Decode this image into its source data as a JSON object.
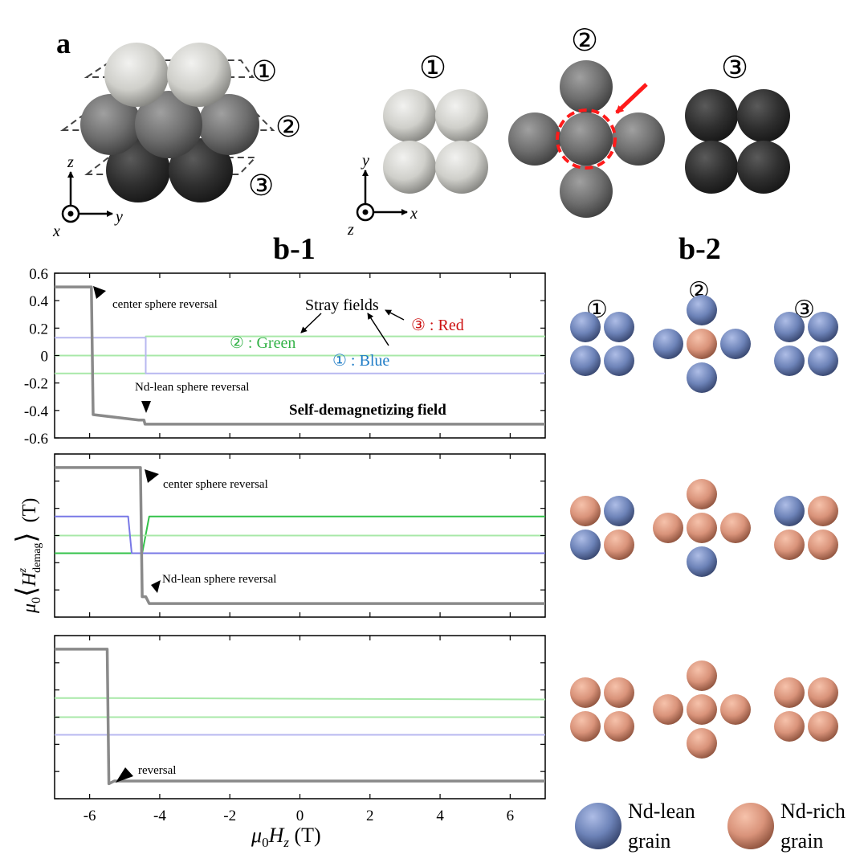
{
  "panel_a": {
    "label": "a",
    "layers": [
      "①",
      "②",
      "③"
    ],
    "axes_side": {
      "up": "z",
      "right": "y",
      "out": "x"
    },
    "axes_top": {
      "up": "y",
      "right": "x",
      "out": "z"
    }
  },
  "panel_b1": {
    "label": "b-1"
  },
  "panel_b2": {
    "label": "b-2",
    "layer_labels": [
      "①",
      "②",
      "③"
    ]
  },
  "annotations": {
    "top": {
      "center_reversal": "center sphere reversal",
      "ndlean_reversal": "Nd-lean sphere reversal",
      "stray_fields": "Stray fields",
      "green_label": "② : Green",
      "blue_label": "① : Blue",
      "red_label": "③ : Red",
      "self_demag": "Self-demagnetizing field"
    },
    "middle": {
      "center_reversal": "center sphere reversal",
      "ndlean_reversal": "Nd-lean sphere reversal"
    },
    "bottom": {
      "reversal": "reversal"
    }
  },
  "legend": {
    "nd_lean": [
      "Nd-lean",
      "grain"
    ],
    "nd_rich": [
      "Nd-rich",
      "grain"
    ]
  },
  "colors": {
    "nd_lean": "#6d83b8",
    "nd_rich": "#d9937a",
    "gray_curve": "#8a8a8a",
    "green": "#33c24a",
    "light_green": "#a8e8a8",
    "blue": "#7878e6",
    "light_blue": "#b8b8f0",
    "red": "#cc0000"
  },
  "chart_data": [
    {
      "type": "line",
      "xlabel": "",
      "ylabel": "",
      "xlim": [
        -7,
        7
      ],
      "ylim": [
        -0.6,
        0.6
      ],
      "yticks": [
        0.6,
        0.4,
        0.2,
        0,
        -0.2,
        -0.4,
        -0.6
      ],
      "ytick_labels": [
        "0.6",
        "0.4",
        "0.2",
        "0",
        "-0.2",
        "-0.4",
        "-0.6"
      ],
      "series": [
        {
          "color": "gray",
          "x": [
            -7,
            -6,
            -5.95,
            -5.9,
            -4.6,
            -4.45,
            -4.42,
            -4.4,
            7
          ],
          "y": [
            0.5,
            0.5,
            0.5,
            -0.43,
            -0.47,
            -0.47,
            -0.5,
            -0.5,
            -0.5
          ]
        },
        {
          "color": "light_green",
          "x": [
            -7,
            -4.4,
            -4.4,
            7
          ],
          "y": [
            -0.13,
            -0.13,
            0.14,
            0.14
          ]
        },
        {
          "color": "light_green",
          "x": [
            -7,
            7
          ],
          "y": [
            0.0,
            0.0
          ]
        },
        {
          "color": "light_blue",
          "x": [
            -7,
            -4.4,
            -4.4,
            7
          ],
          "y": [
            0.13,
            0.13,
            -0.13,
            -0.13
          ]
        }
      ]
    },
    {
      "type": "line",
      "xlim": [
        -7,
        7
      ],
      "ylim": [
        -0.6,
        0.6
      ],
      "series": [
        {
          "color": "gray",
          "x": [
            -7,
            -4.55,
            -4.5,
            -4.4,
            -4.3,
            7
          ],
          "y": [
            0.5,
            0.5,
            -0.45,
            -0.45,
            -0.5,
            -0.5
          ]
        },
        {
          "color": "green",
          "x": [
            -7,
            -4.5,
            -4.3,
            -4.3,
            7
          ],
          "y": [
            -0.13,
            -0.13,
            0.14,
            0.14,
            0.14
          ]
        },
        {
          "color": "light_green",
          "x": [
            -7,
            7
          ],
          "y": [
            0.0,
            0.0
          ]
        },
        {
          "color": "blue",
          "x": [
            -7,
            -4.9,
            -4.8,
            -4.4,
            7
          ],
          "y": [
            0.14,
            0.14,
            -0.13,
            -0.13,
            -0.13
          ]
        }
      ]
    },
    {
      "type": "line",
      "xlabel": "μ0Hz (T)",
      "xlim": [
        -7,
        7
      ],
      "ylim": [
        -0.6,
        0.6
      ],
      "xticks": [
        -6,
        -4,
        -2,
        0,
        2,
        4,
        6
      ],
      "xtick_labels": [
        "-6",
        "-4",
        "-2",
        "0",
        "2",
        "4",
        "6"
      ],
      "series": [
        {
          "color": "gray",
          "x": [
            -7,
            -5.5,
            -5.45,
            -5.3,
            7
          ],
          "y": [
            0.5,
            0.5,
            -0.49,
            -0.47,
            -0.47
          ]
        },
        {
          "color": "light_green",
          "x": [
            -7,
            -5.45,
            7
          ],
          "y": [
            0.14,
            0.14,
            0.13
          ]
        },
        {
          "color": "light_green",
          "x": [
            -7,
            7
          ],
          "y": [
            0.0,
            0.0
          ]
        },
        {
          "color": "light_blue",
          "x": [
            -7,
            -5.45,
            7
          ],
          "y": [
            -0.13,
            -0.13,
            -0.13
          ]
        }
      ]
    }
  ],
  "shared_ylabel": "μ0⟨Hzdemag⟩ (T)"
}
